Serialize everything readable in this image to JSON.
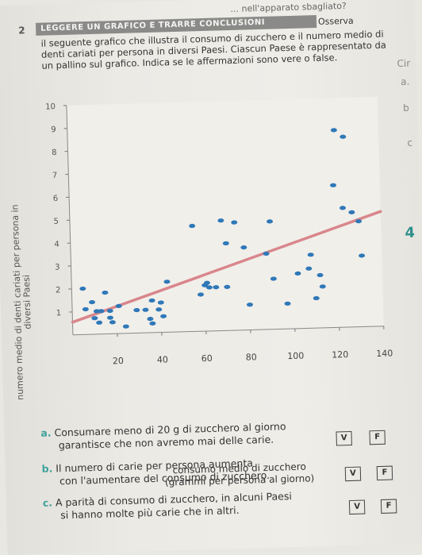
{
  "header": {
    "top_fragment": "... nell'apparato sbagliato?",
    "number": "2"
  },
  "exercise": {
    "badge": "LEGGERE UN GRAFICO E TRARRE CONCLUSIONI",
    "badge_after": "Osserva",
    "intro": "il seguente grafico che illustra il consumo di zucchero e il numero medio di denti cariati per persona in diversi Paesi. Ciascun Paese è rappresentato da un pallino sul grafico. Indica se le affermazioni sono vere o false."
  },
  "margin": {
    "right_notes": [
      "Cir",
      "a.",
      "b",
      "c"
    ],
    "big_number": "4"
  },
  "chart_data": {
    "type": "scatter",
    "ylabel": "numero medio di denti cariati per persona in diversi Paesi",
    "xlabel_line1": "consumo medio di zucchero",
    "xlabel_line2": "(grammi per persona al giorno)",
    "xticks": [
      20,
      40,
      60,
      80,
      100,
      120,
      140
    ],
    "yticks": [
      1,
      2,
      3,
      4,
      5,
      6,
      7,
      8,
      9,
      10
    ],
    "xlim": [
      0,
      140
    ],
    "ylim": [
      0,
      10
    ],
    "trendline": {
      "x": [
        0,
        140
      ],
      "y": [
        0.55,
        5.0
      ],
      "color": "#d9868c"
    },
    "point_color": "#2f78b8",
    "points": [
      [
        5,
        2.0
      ],
      [
        6,
        1.1
      ],
      [
        9,
        1.4
      ],
      [
        10,
        0.7
      ],
      [
        11,
        1.0
      ],
      [
        12,
        0.5
      ],
      [
        13,
        1.0
      ],
      [
        15,
        1.8
      ],
      [
        17,
        0.7
      ],
      [
        17,
        1.0
      ],
      [
        18,
        0.5
      ],
      [
        21,
        1.2
      ],
      [
        24,
        0.3
      ],
      [
        29,
        1.0
      ],
      [
        33,
        1.0
      ],
      [
        35,
        0.6
      ],
      [
        36,
        0.4
      ],
      [
        36,
        1.4
      ],
      [
        39,
        1.0
      ],
      [
        40,
        1.3
      ],
      [
        41,
        0.7
      ],
      [
        43,
        2.2
      ],
      [
        55,
        4.6
      ],
      [
        58,
        1.6
      ],
      [
        60,
        2.0
      ],
      [
        61,
        2.1
      ],
      [
        62,
        1.9
      ],
      [
        65,
        1.9
      ],
      [
        68,
        4.8
      ],
      [
        70,
        3.8
      ],
      [
        70,
        1.9
      ],
      [
        74,
        4.7
      ],
      [
        78,
        3.6
      ],
      [
        80,
        1.1
      ],
      [
        88,
        3.3
      ],
      [
        90,
        4.7
      ],
      [
        91,
        2.2
      ],
      [
        97,
        1.1
      ],
      [
        102,
        2.4
      ],
      [
        107,
        2.6
      ],
      [
        108,
        3.2
      ],
      [
        110,
        1.3
      ],
      [
        112,
        2.3
      ],
      [
        113,
        1.8
      ],
      [
        119,
        6.2
      ],
      [
        120,
        8.6
      ],
      [
        123,
        5.2
      ],
      [
        124,
        8.3
      ],
      [
        127,
        5.0
      ],
      [
        130,
        4.6
      ],
      [
        131,
        3.1
      ]
    ]
  },
  "statements": [
    {
      "letter": "a.",
      "text_line1": "Consumare meno di 20 g di zucchero al giorno",
      "text_line2": "garantisce che non avremo mai delle carie.",
      "v": "V",
      "f": "F"
    },
    {
      "letter": "b.",
      "text_line1": "Il numero di carie per persona aumenta",
      "text_line2": "con l'aumentare del consumo di zucchero.",
      "v": "V",
      "f": "F"
    },
    {
      "letter": "c.",
      "text_line1": "A parità di consumo di zucchero, in alcuni Paesi",
      "text_line2": "si hanno molte più carie che in altri.",
      "v": "V",
      "f": "F"
    }
  ]
}
